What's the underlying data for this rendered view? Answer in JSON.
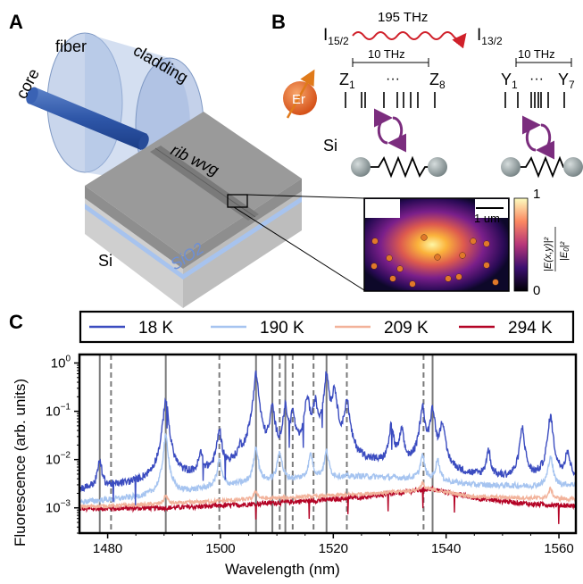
{
  "panel_a": {
    "label": "A",
    "labels": {
      "fiber": "fiber",
      "cladding": "cladding",
      "core": "core",
      "rib": "rib wvg",
      "si": "Si",
      "sio2": "SiO2"
    }
  },
  "panel_b": {
    "label": "B",
    "left_level": "I15/2",
    "right_level": "I13/2",
    "transition": "195 THz",
    "left_span": "10 THz",
    "right_span": "10 THz",
    "z_first": "Z1",
    "z_last": "Z8",
    "y_first": "Y1",
    "y_last": "Y7",
    "dots": "···",
    "er_label": "Er",
    "si_label": "Si",
    "inset": {
      "scale_bar": "1 um",
      "cbar_max": "1",
      "cbar_min": "0",
      "cbar_label": "|E(x,y)|² / |E0|²"
    }
  },
  "panel_c": {
    "label": "C",
    "colors": {
      "t18": "#3b4cc0",
      "t190": "#a6c4f0",
      "t209": "#f2b29a",
      "t294": "#b40426"
    }
  },
  "chart_data": {
    "type": "line",
    "xlabel": "Wavelength (nm)",
    "ylabel": "Fluorescence (arb. units)",
    "xlim": [
      1475,
      1563
    ],
    "ylim": [
      0.0003,
      1.5
    ],
    "yscale": "log",
    "xticks": [
      "1480",
      "1500",
      "1520",
      "1540",
      "1560"
    ],
    "yticks": [
      "10^0",
      "10^-1",
      "10^-2",
      "10^-3"
    ],
    "legend_position": "top",
    "series": [
      {
        "name": "18 K",
        "baseline": [
          [
            1475,
            0.0022
          ],
          [
            1490,
            0.003
          ],
          [
            1500,
            0.0045
          ],
          [
            1515,
            0.006
          ],
          [
            1525,
            0.0065
          ],
          [
            1535,
            0.006
          ],
          [
            1545,
            0.004
          ],
          [
            1555,
            0.0035
          ],
          [
            1563,
            0.004
          ]
        ],
        "peaks": [
          [
            1478.6,
            0.009
          ],
          [
            1490.3,
            0.18
          ],
          [
            1496.5,
            0.012
          ],
          [
            1499.8,
            0.04
          ],
          [
            1503.5,
            0.011
          ],
          [
            1506.3,
            0.6
          ],
          [
            1509.2,
            0.12
          ],
          [
            1511.5,
            0.12
          ],
          [
            1512.8,
            0.09
          ],
          [
            1515.4,
            0.2
          ],
          [
            1516.8,
            0.15
          ],
          [
            1518.8,
            0.6
          ],
          [
            1520.2,
            0.3
          ],
          [
            1522.4,
            0.17
          ],
          [
            1530.3,
            0.05
          ],
          [
            1532.1,
            0.04
          ],
          [
            1535.8,
            0.13
          ],
          [
            1537.6,
            0.12
          ],
          [
            1539.3,
            0.06
          ],
          [
            1547.5,
            0.015
          ],
          [
            1553.5,
            0.045
          ],
          [
            1558.5,
            0.08
          ],
          [
            1561.5,
            0.015
          ]
        ]
      },
      {
        "name": "190 K",
        "baseline": [
          [
            1475,
            0.0013
          ],
          [
            1490,
            0.0018
          ],
          [
            1500,
            0.0028
          ],
          [
            1515,
            0.004
          ],
          [
            1525,
            0.0045
          ],
          [
            1535,
            0.004
          ],
          [
            1545,
            0.003
          ],
          [
            1555,
            0.0028
          ],
          [
            1563,
            0.003
          ]
        ],
        "peaks": [
          [
            1490.3,
            0.03
          ],
          [
            1499.8,
            0.01
          ],
          [
            1506.3,
            0.018
          ],
          [
            1510.5,
            0.015
          ],
          [
            1516,
            0.013
          ],
          [
            1518.8,
            0.015
          ],
          [
            1535.8,
            0.012
          ],
          [
            1538.5,
            0.01
          ],
          [
            1558.5,
            0.012
          ]
        ]
      },
      {
        "name": "209 K",
        "baseline": [
          [
            1475,
            0.00105
          ],
          [
            1490,
            0.0012
          ],
          [
            1500,
            0.0014
          ],
          [
            1520,
            0.0018
          ],
          [
            1530,
            0.0021
          ],
          [
            1537,
            0.0024
          ],
          [
            1545,
            0.0017
          ],
          [
            1555,
            0.0016
          ],
          [
            1563,
            0.0015
          ]
        ],
        "peaks": [
          [
            1490.3,
            0.0018
          ],
          [
            1506.3,
            0.0022
          ],
          [
            1535.8,
            0.0032
          ],
          [
            1558.5,
            0.0025
          ]
        ]
      },
      {
        "name": "294 K",
        "baseline": [
          [
            1475,
            0.00095
          ],
          [
            1490,
            0.001
          ],
          [
            1500,
            0.0011
          ],
          [
            1520,
            0.0015
          ],
          [
            1530,
            0.0019
          ],
          [
            1537,
            0.0025
          ],
          [
            1545,
            0.0016
          ],
          [
            1555,
            0.0012
          ],
          [
            1563,
            0.0011
          ]
        ],
        "peaks": []
      }
    ],
    "solid_lines": [
      1478.6,
      1490.3,
      1506.3,
      1509.2,
      1511.5,
      1518.8,
      1537.6
    ],
    "dashed_lines": [
      1480.6,
      1499.8,
      1510.5,
      1512.8,
      1516.5,
      1522.4,
      1536.0
    ]
  }
}
